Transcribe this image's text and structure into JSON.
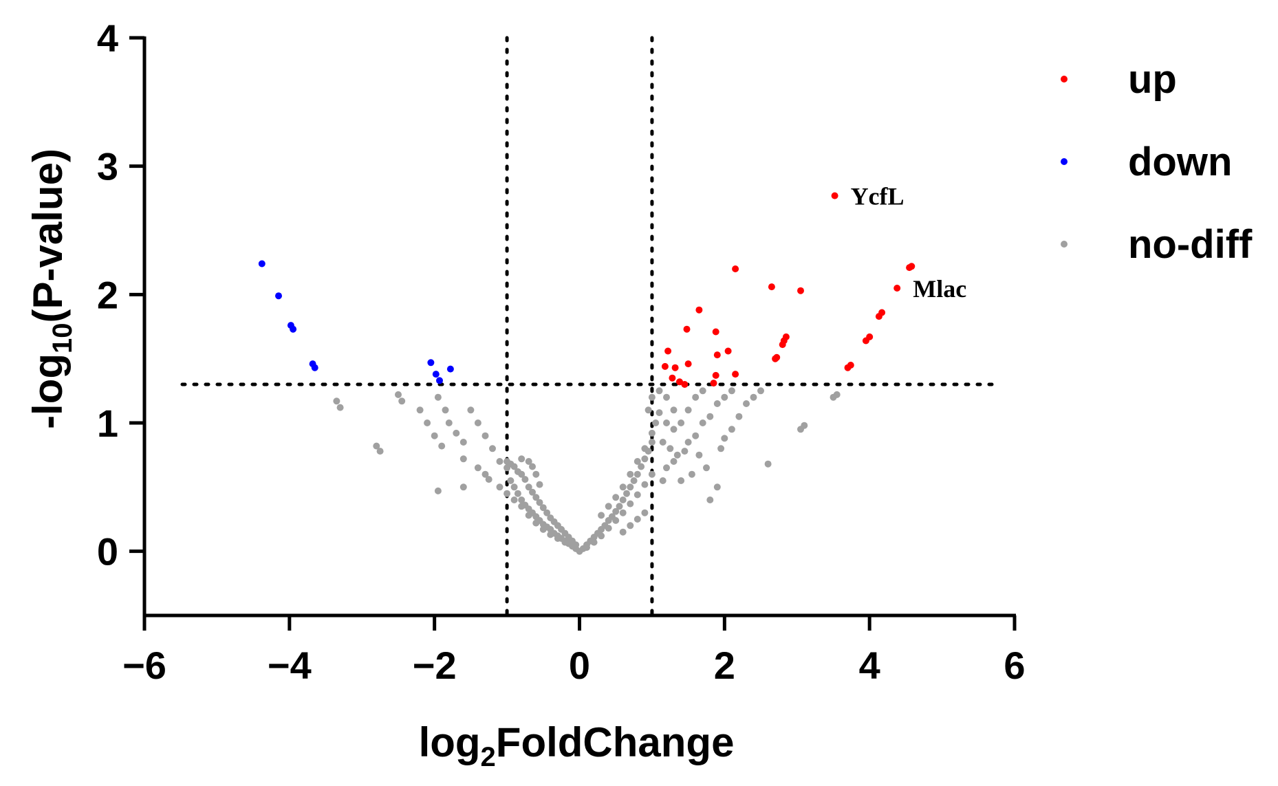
{
  "chart_data": {
    "type": "scatter",
    "xlabel": "log2FoldChange",
    "ylabel": "-log10(P-value)",
    "xlim": [
      -6,
      6
    ],
    "ylim": [
      -0.5,
      4
    ],
    "x_ticks": [
      -6,
      -4,
      -2,
      0,
      2,
      4,
      6
    ],
    "y_ticks": [
      0,
      1,
      2,
      3,
      4
    ],
    "thresholds": {
      "x": [
        -1,
        1
      ],
      "y": 1.3
    },
    "legend_position": "top-right",
    "series": [
      {
        "name": "up",
        "color": "#ff0000",
        "points": [
          [
            3.52,
            2.77
          ],
          [
            4.38,
            2.05
          ],
          [
            4.58,
            2.22
          ],
          [
            4.55,
            2.21
          ],
          [
            2.15,
            2.2
          ],
          [
            2.65,
            2.06
          ],
          [
            3.05,
            2.03
          ],
          [
            1.65,
            1.88
          ],
          [
            1.48,
            1.73
          ],
          [
            1.88,
            1.71
          ],
          [
            1.22,
            1.56
          ],
          [
            1.32,
            1.43
          ],
          [
            1.5,
            1.46
          ],
          [
            1.9,
            1.53
          ],
          [
            2.05,
            1.56
          ],
          [
            1.28,
            1.35
          ],
          [
            1.38,
            1.32
          ],
          [
            1.45,
            1.3
          ],
          [
            1.88,
            1.37
          ],
          [
            2.15,
            1.38
          ],
          [
            1.85,
            1.31
          ],
          [
            2.7,
            1.5
          ],
          [
            2.72,
            1.51
          ],
          [
            2.8,
            1.61
          ],
          [
            2.82,
            1.64
          ],
          [
            2.85,
            1.67
          ],
          [
            3.7,
            1.43
          ],
          [
            3.74,
            1.45
          ],
          [
            3.95,
            1.64
          ],
          [
            4.0,
            1.67
          ],
          [
            4.13,
            1.83
          ],
          [
            4.17,
            1.86
          ],
          [
            1.18,
            1.44
          ]
        ]
      },
      {
        "name": "down",
        "color": "#0000ff",
        "points": [
          [
            -4.38,
            2.24
          ],
          [
            -4.15,
            1.99
          ],
          [
            -3.98,
            1.76
          ],
          [
            -3.95,
            1.73
          ],
          [
            -3.68,
            1.46
          ],
          [
            -3.65,
            1.43
          ],
          [
            -2.05,
            1.47
          ],
          [
            -1.98,
            1.38
          ],
          [
            -1.78,
            1.42
          ],
          [
            -1.93,
            1.33
          ]
        ]
      },
      {
        "name": "no-diff",
        "color": "#a0a0a0",
        "points": [
          [
            -3.35,
            1.17
          ],
          [
            -3.3,
            1.12
          ],
          [
            -2.8,
            0.82
          ],
          [
            -2.75,
            0.78
          ],
          [
            -2.5,
            1.22
          ],
          [
            -2.45,
            1.17
          ],
          [
            -2.2,
            1.1
          ],
          [
            -2.1,
            1.0
          ],
          [
            -2.0,
            0.9
          ],
          [
            -1.9,
            0.82
          ],
          [
            -1.95,
            1.2
          ],
          [
            -1.85,
            1.1
          ],
          [
            -1.8,
            1.0
          ],
          [
            -1.7,
            0.92
          ],
          [
            -1.6,
            0.85
          ],
          [
            -1.5,
            1.1
          ],
          [
            -1.4,
            1.0
          ],
          [
            -1.3,
            0.9
          ],
          [
            -1.2,
            0.8
          ],
          [
            -1.1,
            0.7
          ],
          [
            -1.95,
            0.47
          ],
          [
            -1.6,
            0.5
          ],
          [
            -1.3,
            0.6
          ],
          [
            -1.6,
            0.72
          ],
          [
            -1.4,
            0.65
          ],
          [
            -1.25,
            0.56
          ],
          [
            -1.0,
            0.65
          ],
          [
            -0.95,
            0.55
          ],
          [
            -0.9,
            0.5
          ],
          [
            -0.85,
            0.45
          ],
          [
            -0.8,
            0.4
          ],
          [
            -0.75,
            0.36
          ],
          [
            -0.7,
            0.33
          ],
          [
            -0.65,
            0.3
          ],
          [
            -0.6,
            0.27
          ],
          [
            -0.55,
            0.24
          ],
          [
            -0.5,
            0.21
          ],
          [
            -0.45,
            0.19
          ],
          [
            -0.4,
            0.17
          ],
          [
            -0.35,
            0.14
          ],
          [
            -0.3,
            0.12
          ],
          [
            -0.25,
            0.1
          ],
          [
            -0.2,
            0.08
          ],
          [
            -0.15,
            0.06
          ],
          [
            -0.1,
            0.04
          ],
          [
            -0.05,
            0.02
          ],
          [
            0.0,
            0.0
          ],
          [
            -1.0,
            0.7
          ],
          [
            -0.95,
            0.68
          ],
          [
            -0.9,
            0.66
          ],
          [
            -0.85,
            0.62
          ],
          [
            -0.8,
            0.6
          ],
          [
            -0.75,
            0.56
          ],
          [
            -0.7,
            0.5
          ],
          [
            -0.65,
            0.46
          ],
          [
            -0.6,
            0.42
          ],
          [
            -0.55,
            0.38
          ],
          [
            -0.5,
            0.34
          ],
          [
            -0.45,
            0.3
          ],
          [
            -0.4,
            0.26
          ],
          [
            -0.35,
            0.23
          ],
          [
            -0.3,
            0.2
          ],
          [
            -0.25,
            0.17
          ],
          [
            -0.2,
            0.14
          ],
          [
            -0.15,
            0.11
          ],
          [
            -0.1,
            0.08
          ],
          [
            -0.05,
            0.05
          ],
          [
            -1.1,
            0.5
          ],
          [
            -1.0,
            0.45
          ],
          [
            -0.9,
            0.4
          ],
          [
            -0.8,
            0.35
          ],
          [
            -0.7,
            0.28
          ],
          [
            -0.6,
            0.22
          ],
          [
            -0.5,
            0.17
          ],
          [
            -0.4,
            0.13
          ],
          [
            -0.3,
            0.1
          ],
          [
            -0.2,
            0.07
          ],
          [
            -0.7,
            0.7
          ],
          [
            -0.8,
            0.72
          ],
          [
            -0.6,
            0.6
          ],
          [
            -0.65,
            0.66
          ],
          [
            -0.55,
            0.52
          ],
          [
            0.05,
            0.02
          ],
          [
            0.1,
            0.05
          ],
          [
            0.15,
            0.08
          ],
          [
            0.2,
            0.11
          ],
          [
            0.25,
            0.14
          ],
          [
            0.3,
            0.17
          ],
          [
            0.35,
            0.2
          ],
          [
            0.4,
            0.24
          ],
          [
            0.45,
            0.27
          ],
          [
            0.5,
            0.31
          ],
          [
            0.55,
            0.35
          ],
          [
            0.6,
            0.4
          ],
          [
            0.65,
            0.45
          ],
          [
            0.7,
            0.5
          ],
          [
            0.75,
            0.55
          ],
          [
            0.8,
            0.6
          ],
          [
            0.85,
            0.66
          ],
          [
            0.9,
            0.72
          ],
          [
            0.95,
            0.78
          ],
          [
            1.0,
            0.85
          ],
          [
            0.1,
            0.03
          ],
          [
            0.2,
            0.07
          ],
          [
            0.3,
            0.12
          ],
          [
            0.4,
            0.18
          ],
          [
            0.5,
            0.24
          ],
          [
            0.6,
            0.3
          ],
          [
            0.7,
            0.37
          ],
          [
            0.8,
            0.44
          ],
          [
            0.9,
            0.52
          ],
          [
            1.0,
            0.6
          ],
          [
            0.3,
            0.28
          ],
          [
            0.4,
            0.35
          ],
          [
            0.5,
            0.42
          ],
          [
            0.6,
            0.5
          ],
          [
            0.7,
            0.6
          ],
          [
            0.8,
            0.7
          ],
          [
            0.9,
            0.8
          ],
          [
            1.0,
            0.92
          ],
          [
            1.05,
            1.0
          ],
          [
            1.1,
            1.08
          ],
          [
            0.95,
            1.1
          ],
          [
            1.0,
            1.2
          ],
          [
            1.1,
            1.25
          ],
          [
            1.2,
            1.2
          ],
          [
            1.3,
            1.1
          ],
          [
            1.2,
            1.0
          ],
          [
            1.3,
            0.95
          ],
          [
            1.4,
            1.0
          ],
          [
            1.5,
            1.1
          ],
          [
            1.6,
            1.2
          ],
          [
            1.7,
            1.25
          ],
          [
            1.15,
            0.85
          ],
          [
            1.25,
            0.8
          ],
          [
            1.35,
            0.75
          ],
          [
            1.5,
            0.85
          ],
          [
            1.6,
            0.9
          ],
          [
            1.7,
            1.0
          ],
          [
            1.8,
            1.05
          ],
          [
            1.65,
            0.75
          ],
          [
            1.75,
            0.65
          ],
          [
            1.55,
            0.6
          ],
          [
            1.4,
            0.55
          ],
          [
            1.2,
            0.65
          ],
          [
            1.15,
            0.55
          ],
          [
            1.9,
            1.15
          ],
          [
            2.0,
            1.2
          ],
          [
            2.1,
            1.25
          ],
          [
            2.3,
            1.15
          ],
          [
            2.2,
            1.05
          ],
          [
            2.1,
            0.95
          ],
          [
            2.0,
            0.88
          ],
          [
            1.95,
            0.8
          ],
          [
            2.4,
            1.2
          ],
          [
            2.5,
            1.25
          ],
          [
            1.8,
            0.4
          ],
          [
            1.9,
            0.5
          ],
          [
            2.6,
            0.68
          ],
          [
            3.05,
            0.95
          ],
          [
            3.1,
            0.98
          ],
          [
            3.55,
            1.22
          ],
          [
            3.5,
            1.2
          ],
          [
            0.8,
            0.25
          ],
          [
            0.9,
            0.3
          ],
          [
            0.7,
            0.2
          ],
          [
            0.6,
            0.15
          ],
          [
            1.3,
            0.7
          ],
          [
            1.45,
            0.78
          ]
        ]
      }
    ],
    "annotations": [
      {
        "text": "YcfL",
        "x": 3.52,
        "y": 2.77
      },
      {
        "text": "Mlac",
        "x": 4.38,
        "y": 2.05
      }
    ]
  }
}
